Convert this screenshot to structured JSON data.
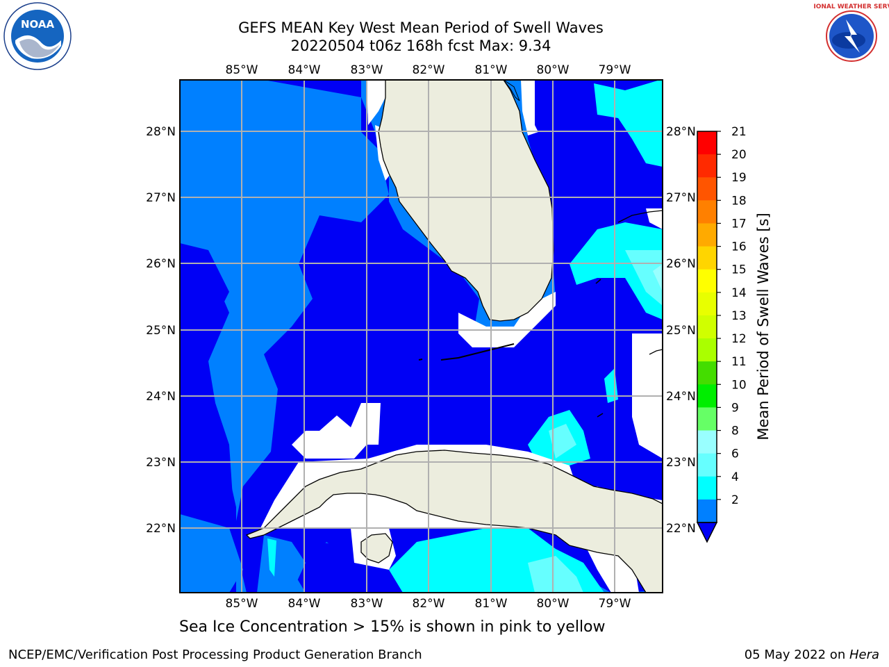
{
  "title_line1": "GEFS MEAN Key West Mean Period of Swell Waves",
  "title_line2": "20220504 t06z 168h fcst   Max: 9.34",
  "subtitle": "Sea Ice Concentration > 15% is shown in pink to yellow",
  "credit": "NCEP/EMC/Verification Post Processing Product Generation Branch",
  "date": "05 May 2022 on ",
  "host": "Hera",
  "logos": {
    "noaa_text": "NOAA",
    "nws_text": "NATIONAL WEATHER SERVICE"
  },
  "map": {
    "lon_labels": [
      "85°W",
      "84°W",
      "83°W",
      "82°W",
      "81°W",
      "80°W",
      "79°W"
    ],
    "lat_labels": [
      "28°N",
      "27°N",
      "26°N",
      "25°N",
      "24°N",
      "23°N",
      "22°N"
    ],
    "colors": {
      "land": "#ecedde",
      "lvl_lt2": "#0000f5",
      "lvl_2_4": "#0080ff",
      "lvl_4_6": "#00ffff",
      "lvl_6_8": "#66ffff",
      "lvl_8_9": "#99ffff",
      "white": "#ffffff",
      "grid": "#b0b0b0"
    }
  },
  "colorbar": {
    "label": "Mean Period of Swell Waves [s]",
    "ticks": [
      "21",
      "20",
      "19",
      "18",
      "17",
      "16",
      "15",
      "14",
      "13",
      "12",
      "11",
      "10",
      "9",
      "8",
      "6",
      "4",
      "2"
    ],
    "colors": [
      "#ff0000",
      "#ff2a00",
      "#ff5500",
      "#ff8000",
      "#ffaa00",
      "#ffd500",
      "#ffff00",
      "#e8ff00",
      "#d0ff00",
      "#aaff00",
      "#44dd00",
      "#00ee00",
      "#66ff66",
      "#99ffff",
      "#66ffff",
      "#00ffff",
      "#0080ff"
    ],
    "extend_color": "#0000f5"
  }
}
